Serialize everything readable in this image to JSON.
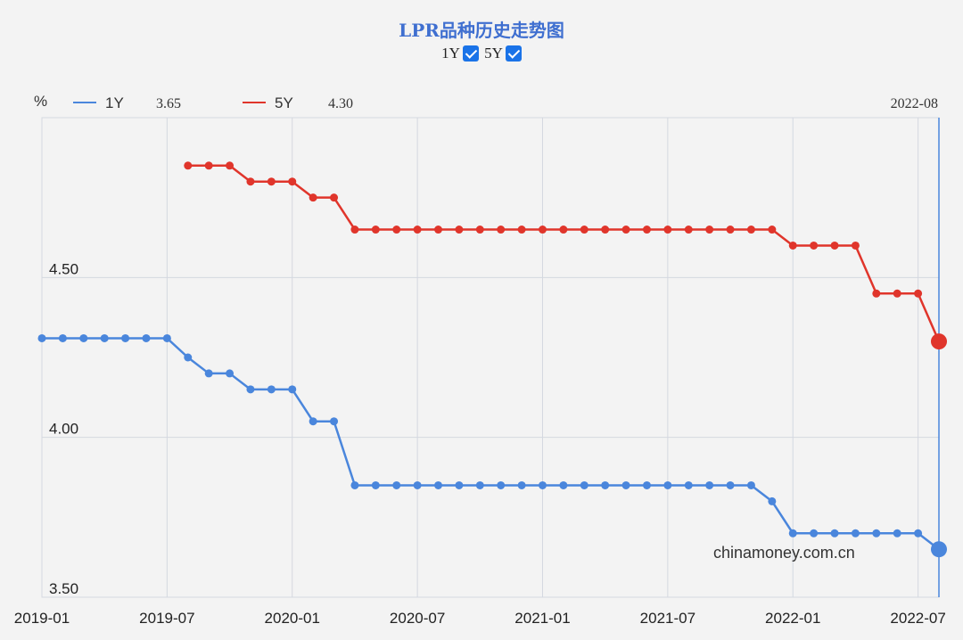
{
  "header": {
    "title": "LPR品种历史走势图",
    "toggles": [
      {
        "label": "1Y",
        "checked": true
      },
      {
        "label": "5Y",
        "checked": true
      }
    ]
  },
  "legend": {
    "unit": "%",
    "date": "2022-08",
    "items": [
      {
        "name": "1Y",
        "value": "3.65",
        "color": "#4a86dc"
      },
      {
        "name": "5Y",
        "value": "4.30",
        "color": "#e0352b"
      }
    ]
  },
  "watermark": "chinamoney.com.cn",
  "colors": {
    "one_year": "#4a86dc",
    "five_year": "#e0352b",
    "background": "#f3f3f3",
    "grid": "#d4d8e0",
    "cursor": "#4a86dc",
    "title": "#3f6fd0"
  },
  "chart_data": {
    "type": "line",
    "title": "LPR品种历史走势图",
    "xlabel": "",
    "ylabel": "%",
    "x_ticks": [
      "2019-01",
      "2019-07",
      "2020-01",
      "2020-07",
      "2021-01",
      "2021-07",
      "2022-01",
      "2022-07"
    ],
    "y_ticks": [
      "3.50",
      "4.00",
      "4.50"
    ],
    "xlim": [
      "2019-01",
      "2022-08"
    ],
    "ylim": [
      3.5,
      5.0
    ],
    "grid": true,
    "legend_position": "top-left",
    "x": [
      "2019-01",
      "2019-02",
      "2019-03",
      "2019-04",
      "2019-05",
      "2019-06",
      "2019-07",
      "2019-08",
      "2019-09",
      "2019-10",
      "2019-11",
      "2019-12",
      "2020-01",
      "2020-02",
      "2020-03",
      "2020-04",
      "2020-05",
      "2020-06",
      "2020-07",
      "2020-08",
      "2020-09",
      "2020-10",
      "2020-11",
      "2020-12",
      "2021-01",
      "2021-02",
      "2021-03",
      "2021-04",
      "2021-05",
      "2021-06",
      "2021-07",
      "2021-08",
      "2021-09",
      "2021-10",
      "2021-11",
      "2021-12",
      "2022-01",
      "2022-02",
      "2022-03",
      "2022-04",
      "2022-05",
      "2022-06",
      "2022-07",
      "2022-08"
    ],
    "series": [
      {
        "name": "1Y",
        "color": "#4a86dc",
        "values": [
          4.31,
          4.31,
          4.31,
          4.31,
          4.31,
          4.31,
          4.31,
          4.25,
          4.2,
          4.2,
          4.15,
          4.15,
          4.15,
          4.05,
          4.05,
          3.85,
          3.85,
          3.85,
          3.85,
          3.85,
          3.85,
          3.85,
          3.85,
          3.85,
          3.85,
          3.85,
          3.85,
          3.85,
          3.85,
          3.85,
          3.85,
          3.85,
          3.85,
          3.85,
          3.85,
          3.8,
          3.7,
          3.7,
          3.7,
          3.7,
          3.7,
          3.7,
          3.7,
          3.65
        ]
      },
      {
        "name": "5Y",
        "color": "#e0352b",
        "values": [
          null,
          null,
          null,
          null,
          null,
          null,
          null,
          4.85,
          4.85,
          4.85,
          4.8,
          4.8,
          4.8,
          4.75,
          4.75,
          4.65,
          4.65,
          4.65,
          4.65,
          4.65,
          4.65,
          4.65,
          4.65,
          4.65,
          4.65,
          4.65,
          4.65,
          4.65,
          4.65,
          4.65,
          4.65,
          4.65,
          4.65,
          4.65,
          4.65,
          4.65,
          4.6,
          4.6,
          4.6,
          4.6,
          4.45,
          4.45,
          4.45,
          4.3
        ]
      }
    ]
  }
}
